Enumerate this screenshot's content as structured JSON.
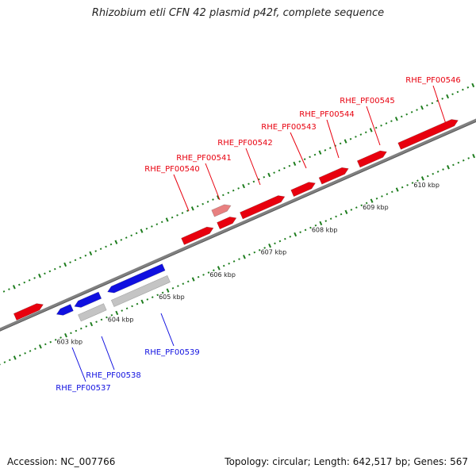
{
  "title": "Rhizobium etli CFN 42 plasmid p42f, complete sequence",
  "footer": {
    "accession": "Accession: NC_007766",
    "summary": "Topology: circular; Length: 642,517 bp; Genes: 567"
  },
  "colors": {
    "forward": "#e8000e",
    "reverse": "#1010e0",
    "pseudo": "#e88080",
    "rna": "#c4c4c4",
    "tick": "#1e7d1e",
    "backbone": "#808080"
  },
  "ticks": [
    {
      "kbp": 603,
      "label": "603 kbp"
    },
    {
      "kbp": 604,
      "label": "604 kbp"
    },
    {
      "kbp": 605,
      "label": "605 kbp"
    },
    {
      "kbp": 606,
      "label": "606 kbp"
    },
    {
      "kbp": 607,
      "label": "607 kbp"
    },
    {
      "kbp": 608,
      "label": "608 kbp"
    },
    {
      "kbp": 609,
      "label": "609 kbp"
    },
    {
      "kbp": 610,
      "label": "610 kbp"
    }
  ],
  "genes": [
    {
      "id": "g0",
      "name": "",
      "start": 602.3,
      "end": 602.85,
      "strand": "forward-lane",
      "type": "cds-forward"
    },
    {
      "id": "g1",
      "name": "",
      "start": 603.0,
      "end": 603.3,
      "strand": "reverse",
      "type": "cds-reverse"
    },
    {
      "id": "g2",
      "name": "",
      "start": 603.35,
      "end": 603.85,
      "strand": "reverse",
      "type": "cds-reverse"
    },
    {
      "id": "g3",
      "name": "",
      "start": 603.35,
      "end": 603.85,
      "strand": "rna",
      "type": "rna"
    },
    {
      "id": "g4",
      "name": "",
      "start": 604.0,
      "end": 605.1,
      "strand": "reverse",
      "type": "cds-reverse"
    },
    {
      "id": "g5",
      "name": "",
      "start": 604.0,
      "end": 605.1,
      "strand": "rna",
      "type": "rna"
    },
    {
      "id": "g6",
      "name": "",
      "start": 605.6,
      "end": 606.2,
      "strand": "forward",
      "type": "cds-forward"
    },
    {
      "id": "g7",
      "name": "",
      "start": 606.3,
      "end": 606.65,
      "strand": "forward",
      "type": "cds-forward"
    },
    {
      "id": "g8",
      "name": "",
      "start": 606.3,
      "end": 606.65,
      "strand": "pseudo",
      "type": "pseudo"
    },
    {
      "id": "g9",
      "name": "",
      "start": 606.75,
      "end": 607.6,
      "strand": "forward",
      "type": "cds-forward"
    },
    {
      "id": "g10",
      "name": "",
      "start": 607.75,
      "end": 608.2,
      "strand": "forward",
      "type": "cds-forward"
    },
    {
      "id": "g11",
      "name": "",
      "start": 608.3,
      "end": 608.85,
      "strand": "forward",
      "type": "cds-forward"
    },
    {
      "id": "g12",
      "name": "",
      "start": 609.05,
      "end": 609.6,
      "strand": "forward",
      "type": "cds-forward"
    },
    {
      "id": "g13",
      "name": "",
      "start": 609.85,
      "end": 611.0,
      "strand": "forward",
      "type": "cds-forward"
    }
  ],
  "gene_labels": [
    {
      "name": "RHE_PF00537",
      "strand": "reverse"
    },
    {
      "name": "RHE_PF00538",
      "strand": "reverse"
    },
    {
      "name": "RHE_PF00539",
      "strand": "reverse"
    },
    {
      "name": "RHE_PF00540",
      "strand": "forward"
    },
    {
      "name": "RHE_PF00541",
      "strand": "forward"
    },
    {
      "name": "RHE_PF00542",
      "strand": "forward"
    },
    {
      "name": "RHE_PF00543",
      "strand": "forward"
    },
    {
      "name": "RHE_PF00544",
      "strand": "forward"
    },
    {
      "name": "RHE_PF00545",
      "strand": "forward"
    },
    {
      "name": "RHE_PF00546",
      "strand": "forward"
    }
  ]
}
